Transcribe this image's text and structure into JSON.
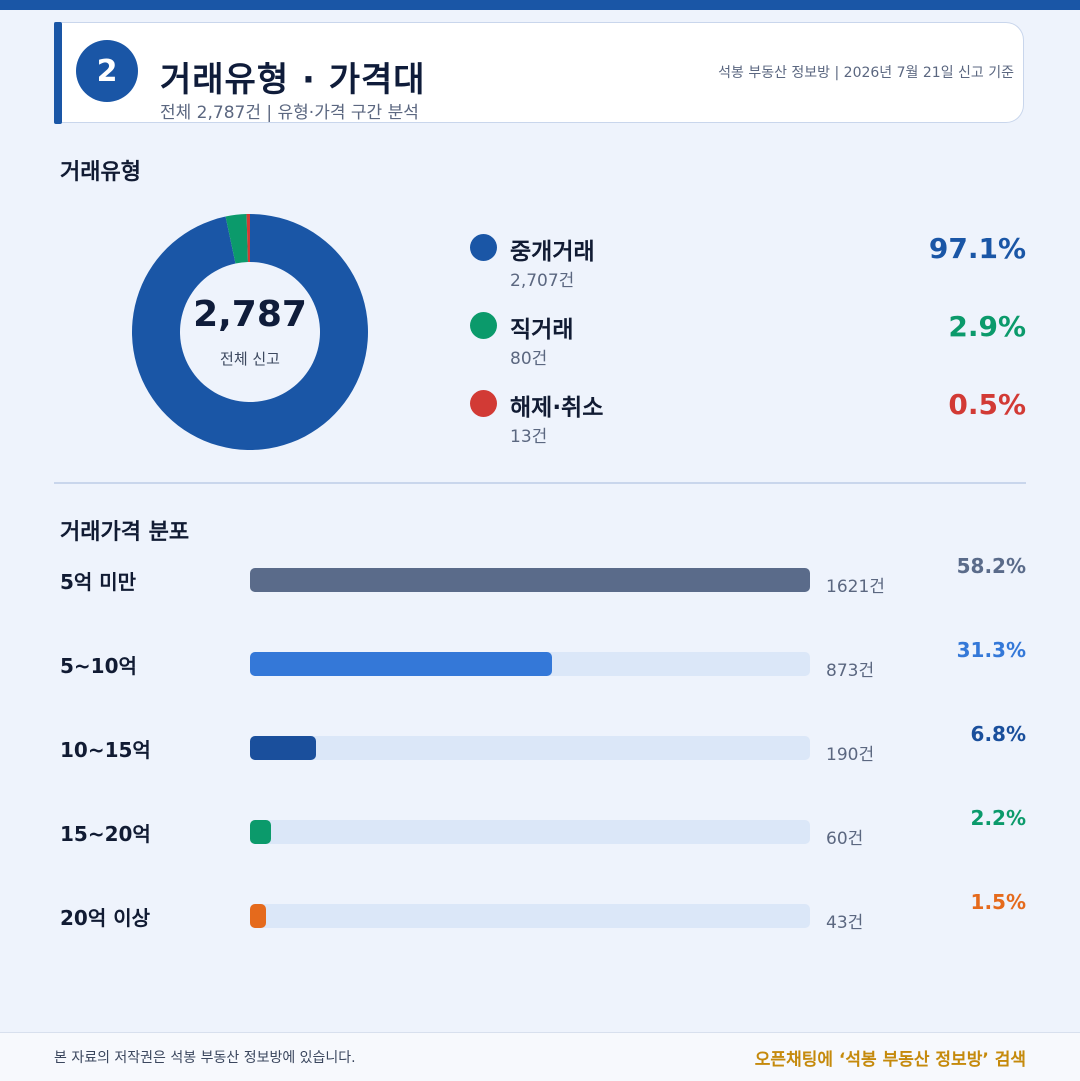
{
  "header": {
    "number": "2",
    "title": "거래유형 · 가격대",
    "subtitle": "전체 2,787건 | 유형·가격 구간 분석",
    "source": "석봉 부동산 정보방 | 2026년 7월 21일 신고 기준"
  },
  "sections": {
    "type_title": "거래유형",
    "price_title": "거래가격 분포"
  },
  "donut": {
    "total": "2,787",
    "total_label": "전체 신고"
  },
  "legend": [
    {
      "name": "중개거래",
      "count": "2,707건",
      "pct": "97.1%",
      "color": "#1a56a6"
    },
    {
      "name": "직거래",
      "count": "80건",
      "pct": "2.9%",
      "color": "#0b9a6b"
    },
    {
      "name": "해제·취소",
      "count": "13건",
      "pct": "0.5%",
      "color": "#d23a35"
    }
  ],
  "price_rows": [
    {
      "label": "5억 미만",
      "count": "1621건",
      "pct": "58.2%",
      "color": "#5a6b8a"
    },
    {
      "label": "5~10억",
      "count": "873건",
      "pct": "31.3%",
      "color": "#3478d8"
    },
    {
      "label": "10~15억",
      "count": "190건",
      "pct": "6.8%",
      "color": "#1a4f9c"
    },
    {
      "label": "15~20억",
      "count": "60건",
      "pct": "2.2%",
      "color": "#0b9a6b"
    },
    {
      "label": "20억 이상",
      "count": "43건",
      "pct": "1.5%",
      "color": "#e56a1c"
    }
  ],
  "chart_data": [
    {
      "type": "pie",
      "categories": [
        "중개거래",
        "직거래",
        "해제·취소"
      ],
      "values": [
        2707,
        80,
        13
      ],
      "colors": [
        "#1a56a6",
        "#0b9a6b",
        "#d23a35"
      ]
    },
    {
      "type": "bar",
      "orientation": "horizontal",
      "categories": [
        "5억 미만",
        "5~10억",
        "10~15억",
        "15~20억",
        "20억 이상"
      ],
      "values": [
        1621,
        873,
        190,
        60,
        43
      ],
      "colors": [
        "#5a6b8a",
        "#3478d8",
        "#1a4f9c",
        "#0b9a6b",
        "#e56a1c"
      ]
    }
  ],
  "footer": {
    "copyright": "본 자료의 저작권은 석봉 부동산 정보방에 있습니다.",
    "cta": "오픈채팅에 ‘석봉 부동산 정보방’ 검색"
  }
}
